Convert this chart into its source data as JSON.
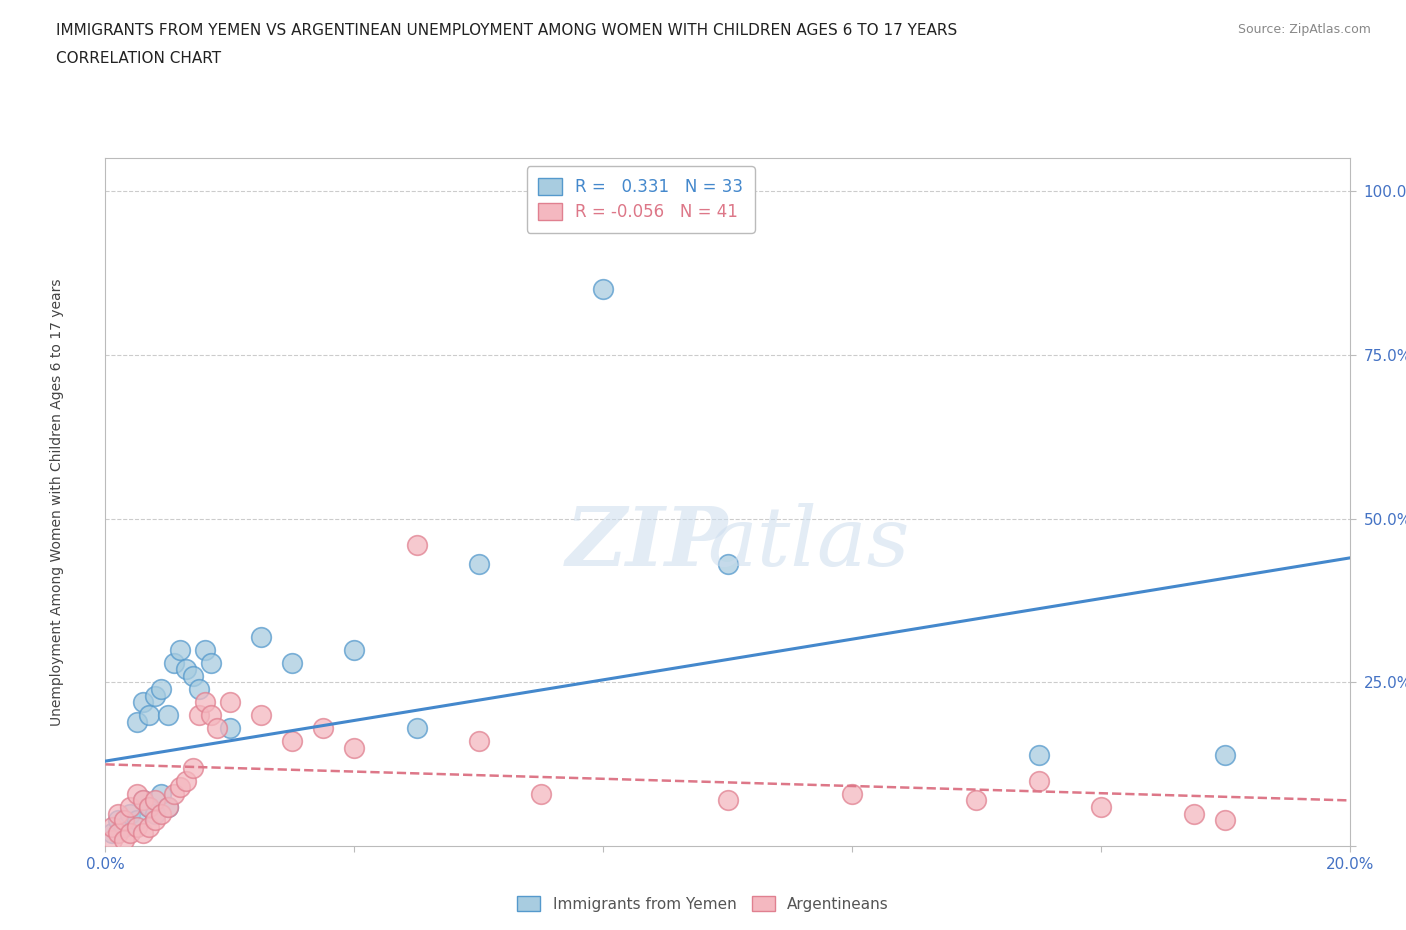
{
  "title_line1": "IMMIGRANTS FROM YEMEN VS ARGENTINEAN UNEMPLOYMENT AMONG WOMEN WITH CHILDREN AGES 6 TO 17 YEARS",
  "title_line2": "CORRELATION CHART",
  "source_text": "Source: ZipAtlas.com",
  "ylabel": "Unemployment Among Women with Children Ages 6 to 17 years",
  "xlim": [
    0.0,
    0.2
  ],
  "ylim": [
    0.0,
    1.05
  ],
  "xticks": [
    0.0,
    0.04,
    0.08,
    0.12,
    0.16,
    0.2
  ],
  "xtick_labels": [
    "0.0%",
    "",
    "",
    "",
    "",
    "20.0%"
  ],
  "yticks": [
    0.0,
    0.25,
    0.5,
    0.75,
    1.0
  ],
  "ytick_labels": [
    "",
    "25.0%",
    "50.0%",
    "75.0%",
    "100.0%"
  ],
  "background_color": "#ffffff",
  "grid_color": "#cccccc",
  "blue_fill": "#a8cce0",
  "pink_fill": "#f4b8c0",
  "blue_edge": "#5599cc",
  "pink_edge": "#e08090",
  "blue_line": "#4488cc",
  "pink_line": "#dd7788",
  "yemen_scatter_x": [
    0.001,
    0.002,
    0.003,
    0.004,
    0.005,
    0.005,
    0.006,
    0.006,
    0.007,
    0.007,
    0.008,
    0.008,
    0.009,
    0.009,
    0.01,
    0.01,
    0.011,
    0.012,
    0.013,
    0.014,
    0.015,
    0.016,
    0.017,
    0.02,
    0.025,
    0.03,
    0.04,
    0.05,
    0.06,
    0.08,
    0.1,
    0.15,
    0.18
  ],
  "yemen_scatter_y": [
    0.02,
    0.04,
    0.03,
    0.05,
    0.04,
    0.19,
    0.07,
    0.22,
    0.06,
    0.2,
    0.05,
    0.23,
    0.08,
    0.24,
    0.06,
    0.2,
    0.28,
    0.3,
    0.27,
    0.26,
    0.24,
    0.3,
    0.28,
    0.18,
    0.32,
    0.28,
    0.3,
    0.18,
    0.43,
    0.85,
    0.43,
    0.14,
    0.14
  ],
  "argentina_scatter_x": [
    0.001,
    0.001,
    0.002,
    0.002,
    0.003,
    0.003,
    0.004,
    0.004,
    0.005,
    0.005,
    0.006,
    0.006,
    0.007,
    0.007,
    0.008,
    0.008,
    0.009,
    0.01,
    0.011,
    0.012,
    0.013,
    0.014,
    0.015,
    0.016,
    0.017,
    0.018,
    0.02,
    0.025,
    0.03,
    0.035,
    0.04,
    0.05,
    0.06,
    0.07,
    0.1,
    0.12,
    0.14,
    0.15,
    0.16,
    0.175,
    0.18
  ],
  "argentina_scatter_y": [
    0.01,
    0.03,
    0.02,
    0.05,
    0.01,
    0.04,
    0.02,
    0.06,
    0.03,
    0.08,
    0.02,
    0.07,
    0.03,
    0.06,
    0.04,
    0.07,
    0.05,
    0.06,
    0.08,
    0.09,
    0.1,
    0.12,
    0.2,
    0.22,
    0.2,
    0.18,
    0.22,
    0.2,
    0.16,
    0.18,
    0.15,
    0.46,
    0.16,
    0.08,
    0.07,
    0.08,
    0.07,
    0.1,
    0.06,
    0.05,
    0.04
  ],
  "yemen_trend_x": [
    0.0,
    0.2
  ],
  "yemen_trend_y": [
    0.13,
    0.44
  ],
  "argentina_trend_x": [
    0.0,
    0.2
  ],
  "argentina_trend_y": [
    0.125,
    0.07
  ]
}
